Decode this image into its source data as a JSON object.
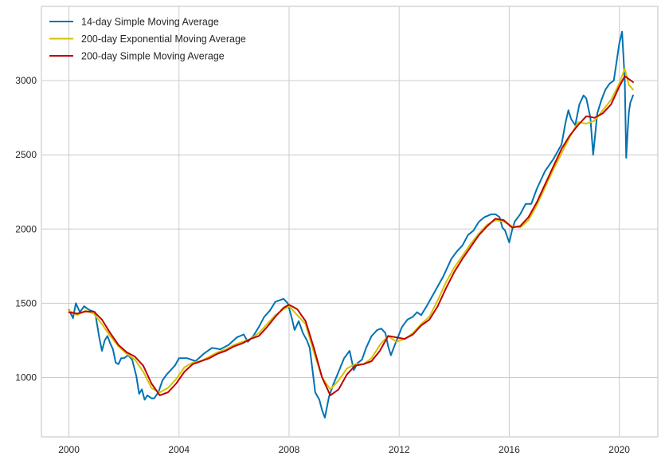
{
  "chart_data": {
    "type": "line",
    "title": "",
    "xlabel": "",
    "ylabel": "",
    "xlim": [
      1999.0,
      2021.4
    ],
    "ylim": [
      600,
      3500
    ],
    "grid": true,
    "legend_position": "top-left",
    "x_ticks": [
      2000,
      2004,
      2008,
      2012,
      2016,
      2020
    ],
    "x_tick_labels": [
      "2000",
      "2004",
      "2008",
      "2012",
      "2016",
      "2020"
    ],
    "y_ticks": [
      1000,
      1500,
      2000,
      2500,
      3000
    ],
    "y_tick_labels": [
      "1000",
      "1500",
      "2000",
      "2500",
      "3000"
    ],
    "series": [
      {
        "name": "14-day Simple Moving Average",
        "color": "#0072b2",
        "x": [
          2000.0,
          2000.15,
          2000.25,
          2000.4,
          2000.55,
          2000.7,
          2000.8,
          2000.95,
          2001.1,
          2001.2,
          2001.3,
          2001.4,
          2001.5,
          2001.6,
          2001.7,
          2001.8,
          2001.9,
          2002.0,
          2002.15,
          2002.3,
          2002.45,
          2002.55,
          2002.65,
          2002.75,
          2002.85,
          2003.0,
          2003.1,
          2003.25,
          2003.4,
          2003.55,
          2003.7,
          2003.85,
          2004.0,
          2004.3,
          2004.6,
          2004.9,
          2005.2,
          2005.5,
          2005.8,
          2006.1,
          2006.35,
          2006.5,
          2006.7,
          2006.9,
          2007.1,
          2007.3,
          2007.5,
          2007.65,
          2007.8,
          2007.95,
          2008.1,
          2008.2,
          2008.35,
          2008.5,
          2008.65,
          2008.75,
          2008.85,
          2008.95,
          2009.1,
          2009.2,
          2009.3,
          2009.45,
          2009.6,
          2009.8,
          2010.0,
          2010.2,
          2010.35,
          2010.5,
          2010.65,
          2010.8,
          2011.0,
          2011.2,
          2011.35,
          2011.5,
          2011.6,
          2011.7,
          2011.8,
          2011.95,
          2012.1,
          2012.3,
          2012.5,
          2012.65,
          2012.8,
          2013.0,
          2013.3,
          2013.6,
          2013.9,
          2014.1,
          2014.3,
          2014.5,
          2014.7,
          2014.9,
          2015.1,
          2015.35,
          2015.5,
          2015.65,
          2015.75,
          2015.85,
          2016.0,
          2016.1,
          2016.2,
          2016.4,
          2016.6,
          2016.8,
          2017.0,
          2017.3,
          2017.6,
          2017.9,
          2018.05,
          2018.15,
          2018.25,
          2018.4,
          2018.55,
          2018.7,
          2018.8,
          2018.95,
          2019.05,
          2019.2,
          2019.35,
          2019.5,
          2019.65,
          2019.8,
          2020.0,
          2020.1,
          2020.2,
          2020.25,
          2020.3,
          2020.35,
          2020.4,
          2020.5
        ],
        "values": [
          1455,
          1400,
          1500,
          1440,
          1480,
          1460,
          1450,
          1440,
          1270,
          1180,
          1250,
          1280,
          1230,
          1190,
          1100,
          1090,
          1130,
          1130,
          1150,
          1120,
          1010,
          890,
          920,
          850,
          880,
          860,
          860,
          900,
          980,
          1020,
          1050,
          1080,
          1130,
          1130,
          1110,
          1160,
          1200,
          1190,
          1220,
          1270,
          1290,
          1240,
          1280,
          1340,
          1410,
          1450,
          1510,
          1520,
          1530,
          1500,
          1400,
          1320,
          1380,
          1300,
          1250,
          1200,
          1050,
          900,
          850,
          780,
          730,
          870,
          950,
          1040,
          1130,
          1180,
          1050,
          1100,
          1120,
          1200,
          1280,
          1320,
          1330,
          1300,
          1210,
          1150,
          1200,
          1270,
          1340,
          1390,
          1410,
          1440,
          1420,
          1480,
          1580,
          1680,
          1800,
          1850,
          1890,
          1960,
          1990,
          2050,
          2080,
          2100,
          2100,
          2080,
          2010,
          1990,
          1910,
          1990,
          2050,
          2100,
          2170,
          2170,
          2270,
          2390,
          2470,
          2570,
          2720,
          2800,
          2740,
          2700,
          2840,
          2900,
          2880,
          2750,
          2500,
          2780,
          2870,
          2940,
          2980,
          3000,
          3250,
          3330,
          3000,
          2480,
          2650,
          2790,
          2850,
          2900
        ]
      },
      {
        "name": "200-day Exponential Moving Average",
        "color": "#d4c200",
        "x": [
          2000.0,
          2000.3,
          2000.6,
          2000.9,
          2001.2,
          2001.5,
          2001.8,
          2002.1,
          2002.4,
          2002.7,
          2003.0,
          2003.3,
          2003.6,
          2003.9,
          2004.2,
          2004.5,
          2004.8,
          2005.1,
          2005.4,
          2005.7,
          2006.0,
          2006.3,
          2006.6,
          2006.9,
          2007.2,
          2007.5,
          2007.8,
          2008.0,
          2008.3,
          2008.6,
          2008.9,
          2009.2,
          2009.5,
          2009.8,
          2010.1,
          2010.4,
          2010.7,
          2011.0,
          2011.3,
          2011.6,
          2011.9,
          2012.2,
          2012.5,
          2012.8,
          2013.1,
          2013.4,
          2013.7,
          2014.0,
          2014.3,
          2014.6,
          2014.9,
          2015.2,
          2015.5,
          2015.8,
          2016.1,
          2016.4,
          2016.7,
          2017.0,
          2017.3,
          2017.6,
          2017.9,
          2018.2,
          2018.5,
          2018.8,
          2019.1,
          2019.4,
          2019.7,
          2020.0,
          2020.2,
          2020.35,
          2020.5
        ],
        "values": [
          1450,
          1420,
          1450,
          1430,
          1360,
          1280,
          1210,
          1160,
          1120,
          1040,
          930,
          900,
          930,
          990,
          1070,
          1100,
          1110,
          1140,
          1170,
          1190,
          1220,
          1240,
          1260,
          1300,
          1360,
          1420,
          1460,
          1480,
          1420,
          1360,
          1170,
          1000,
          920,
          980,
          1060,
          1090,
          1090,
          1130,
          1220,
          1280,
          1240,
          1260,
          1300,
          1360,
          1410,
          1520,
          1640,
          1740,
          1820,
          1900,
          1970,
          2030,
          2060,
          2050,
          2020,
          2010,
          2060,
          2160,
          2280,
          2400,
          2510,
          2620,
          2720,
          2710,
          2730,
          2800,
          2870,
          2980,
          3080,
          2970,
          2940
        ]
      },
      {
        "name": "200-day Simple Moving Average",
        "color": "#c00000",
        "x": [
          2000.0,
          2000.3,
          2000.6,
          2000.9,
          2001.2,
          2001.5,
          2001.8,
          2002.1,
          2002.4,
          2002.7,
          2003.0,
          2003.3,
          2003.6,
          2003.9,
          2004.2,
          2004.5,
          2004.8,
          2005.1,
          2005.4,
          2005.7,
          2006.0,
          2006.3,
          2006.6,
          2006.9,
          2007.2,
          2007.5,
          2007.8,
          2008.0,
          2008.3,
          2008.6,
          2008.9,
          2009.2,
          2009.5,
          2009.8,
          2010.1,
          2010.4,
          2010.7,
          2011.0,
          2011.3,
          2011.6,
          2011.9,
          2012.2,
          2012.5,
          2012.8,
          2013.1,
          2013.4,
          2013.7,
          2014.0,
          2014.3,
          2014.6,
          2014.9,
          2015.2,
          2015.5,
          2015.8,
          2016.1,
          2016.4,
          2016.7,
          2017.0,
          2017.3,
          2017.6,
          2017.9,
          2018.2,
          2018.5,
          2018.8,
          2019.1,
          2019.4,
          2019.7,
          2020.0,
          2020.2,
          2020.35,
          2020.5
        ],
        "values": [
          1440,
          1430,
          1445,
          1445,
          1390,
          1300,
          1220,
          1170,
          1140,
          1080,
          960,
          880,
          900,
          960,
          1040,
          1090,
          1110,
          1130,
          1160,
          1180,
          1210,
          1230,
          1260,
          1280,
          1340,
          1410,
          1470,
          1490,
          1460,
          1380,
          1200,
          1000,
          880,
          920,
          1020,
          1080,
          1090,
          1110,
          1180,
          1280,
          1270,
          1260,
          1290,
          1350,
          1390,
          1480,
          1600,
          1710,
          1800,
          1880,
          1960,
          2020,
          2070,
          2060,
          2010,
          2020,
          2080,
          2180,
          2300,
          2420,
          2540,
          2630,
          2700,
          2760,
          2750,
          2780,
          2840,
          2960,
          3030,
          3010,
          2990
        ]
      }
    ]
  }
}
